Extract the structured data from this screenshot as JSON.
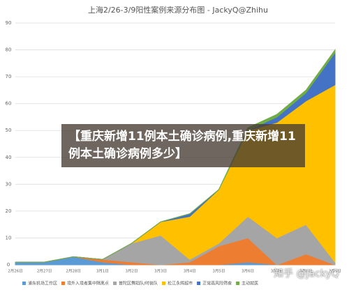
{
  "chart_data": {
    "type": "stacked-area",
    "title": "上海2/26-3/9阳性案例来源分布图 - JackyQ@Zhihu",
    "categories": [
      "2月26日",
      "2月27日",
      "2月28日",
      "3月1日",
      "3月2日",
      "3月3日",
      "3月4日",
      "3月5日",
      "3月6日",
      "3月7日",
      "3月8日",
      "3月9日"
    ],
    "series": [
      {
        "name": "浦东机场工作区",
        "color": "#5b9bd5",
        "values": [
          1,
          1,
          3,
          1,
          0,
          0,
          0,
          0,
          1,
          0,
          0,
          0
        ]
      },
      {
        "name": "境外入境者集中隔离点",
        "color": "#ed7d31",
        "values": [
          0,
          0,
          0,
          1,
          1,
          0,
          1,
          7,
          9,
          0,
          4,
          0
        ]
      },
      {
        "name": "普陀区舞蹈队/时装队",
        "color": "#a5a5a5",
        "values": [
          0,
          0,
          0,
          0,
          7,
          11,
          1,
          1,
          8,
          10,
          11,
          1
        ]
      },
      {
        "name": "松江永辉超市",
        "color": "#ffc000",
        "values": [
          0,
          0,
          0,
          0,
          0,
          5,
          16,
          20,
          32,
          43,
          46,
          66
        ]
      },
      {
        "name": "正常高风险筛查",
        "color": "#4472c4",
        "values": [
          0,
          0,
          0,
          0,
          0,
          0,
          1,
          0,
          0,
          2,
          3,
          12
        ]
      },
      {
        "name": "主动就医",
        "color": "#70ad47",
        "values": [
          0,
          0,
          0,
          0,
          0,
          0,
          0,
          0,
          1,
          1,
          1,
          1
        ]
      }
    ],
    "ylim": [
      0,
      90
    ],
    "yticks": [
      0,
      10,
      20,
      30,
      40,
      50,
      60,
      70,
      80,
      90
    ],
    "grid": true,
    "legend": "bottom"
  },
  "banner": "【重庆新增11例本土确诊病例,重庆新增11例本土确诊病例多少】",
  "watermark": "知乎 @JackyQ"
}
